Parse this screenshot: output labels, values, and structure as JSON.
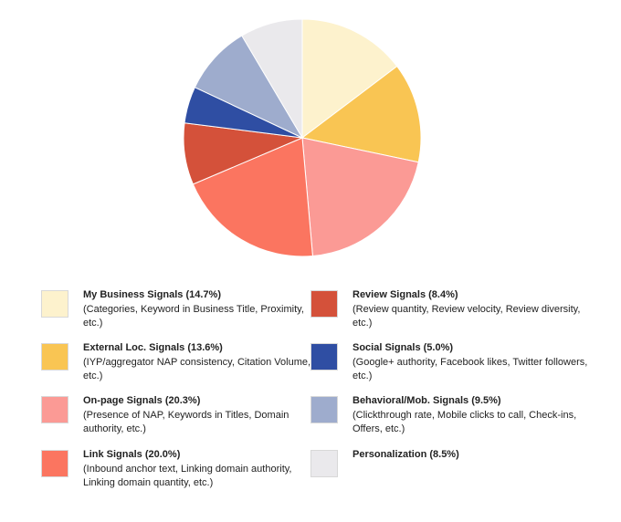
{
  "chart_data": {
    "type": "pie",
    "title": "",
    "slices": [
      {
        "label": "My Business Signals (14.7%)",
        "value": 14.7,
        "description": "(Categories, Keyword in Business Title, Proximity, etc.)",
        "color": "#fdf2cd"
      },
      {
        "label": "External Loc. Signals (13.6%)",
        "value": 13.6,
        "description": "(IYP/aggregator NAP consistency, Citation Volume, etc.)",
        "color": "#f9c553"
      },
      {
        "label": "On-page Signals (20.3%)",
        "value": 20.3,
        "description": "(Presence of NAP, Keywords in Titles, Domain authority, etc.)",
        "color": "#fb9a95"
      },
      {
        "label": "Link Signals (20.0%)",
        "value": 20.0,
        "description": "(Inbound anchor text, Linking domain authority, Linking domain quantity, etc.)",
        "color": "#fb7560"
      },
      {
        "label": "Review Signals (8.4%)",
        "value": 8.4,
        "description": "(Review quantity, Review velocity, Review diversity, etc.)",
        "color": "#d4513a"
      },
      {
        "label": "Social Signals (5.0%)",
        "value": 5.0,
        "description": "(Google+ authority, Facebook likes, Twitter followers, etc.)",
        "color": "#2f4ea3"
      },
      {
        "label": "Behavioral/Mob. Signals (9.5%)",
        "value": 9.5,
        "description": "(Clickthrough rate, Mobile clicks to call, Check-ins, Offers, etc.)",
        "color": "#9eaccd"
      },
      {
        "label": "Personalization (8.5%)",
        "value": 8.5,
        "description": "",
        "color": "#eae9ec"
      }
    ],
    "legend_placement": "bottom"
  }
}
